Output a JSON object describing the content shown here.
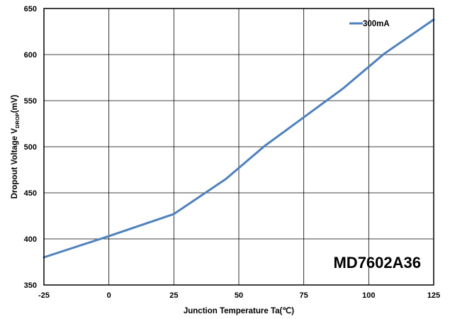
{
  "chart_data": {
    "type": "line",
    "title": "",
    "xlabel": "Junction Temperature Ta(℃)",
    "ylabel_parts": {
      "main": "Dropout Voltage V",
      "subscript": "DROP",
      "suffix": "(mV)"
    },
    "xlim": [
      -25,
      125
    ],
    "ylim": [
      350,
      650
    ],
    "x_ticks": [
      -25,
      0,
      25,
      50,
      75,
      100,
      125
    ],
    "y_ticks": [
      350,
      400,
      450,
      500,
      550,
      600,
      650
    ],
    "grid": true,
    "legend_position": "top-right",
    "annotation": "MD7602A36",
    "series": [
      {
        "name": "300mA",
        "color": "#4F81BD",
        "x": [
          -25,
          0,
          25,
          45,
          60,
          75,
          90,
          106,
          125
        ],
        "y": [
          380,
          403,
          427,
          465,
          501,
          532,
          563,
          601,
          638
        ]
      }
    ]
  }
}
